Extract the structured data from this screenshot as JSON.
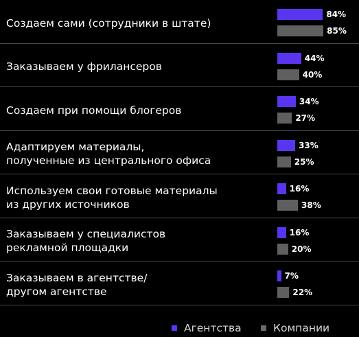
{
  "chart_data": {
    "type": "bar",
    "orientation": "horizontal",
    "categories": [
      [
        "Создаем сами (сотрудники в штате)"
      ],
      [
        "Заказываем у фрилансеров"
      ],
      [
        "Создаем при помощи блогеров"
      ],
      [
        "Адаптируем материалы,",
        "полученные из центрального офиса"
      ],
      [
        "Используем свои готовые материалы",
        "из других источников"
      ],
      [
        "Заказываем у специалистов",
        "рекламной площадки"
      ],
      [
        "Заказываем в агентстве/",
        "другом агентстве"
      ]
    ],
    "series": [
      {
        "name": "Агентства",
        "color": "#5a35f0",
        "values": [
          84,
          44,
          34,
          33,
          16,
          16,
          7
        ],
        "labels": [
          "84%",
          "44%",
          "34%",
          "33%",
          "16%",
          "16%",
          "7%"
        ]
      },
      {
        "name": "Компании",
        "color": "#5f5f5f",
        "values": [
          85,
          40,
          27,
          25,
          38,
          20,
          22
        ],
        "labels": [
          "85%",
          "40%",
          "27%",
          "25%",
          "38%",
          "20%",
          "22%"
        ]
      }
    ],
    "xlim": [
      0,
      100
    ],
    "grid": false,
    "legend_position": "bottom-right"
  }
}
